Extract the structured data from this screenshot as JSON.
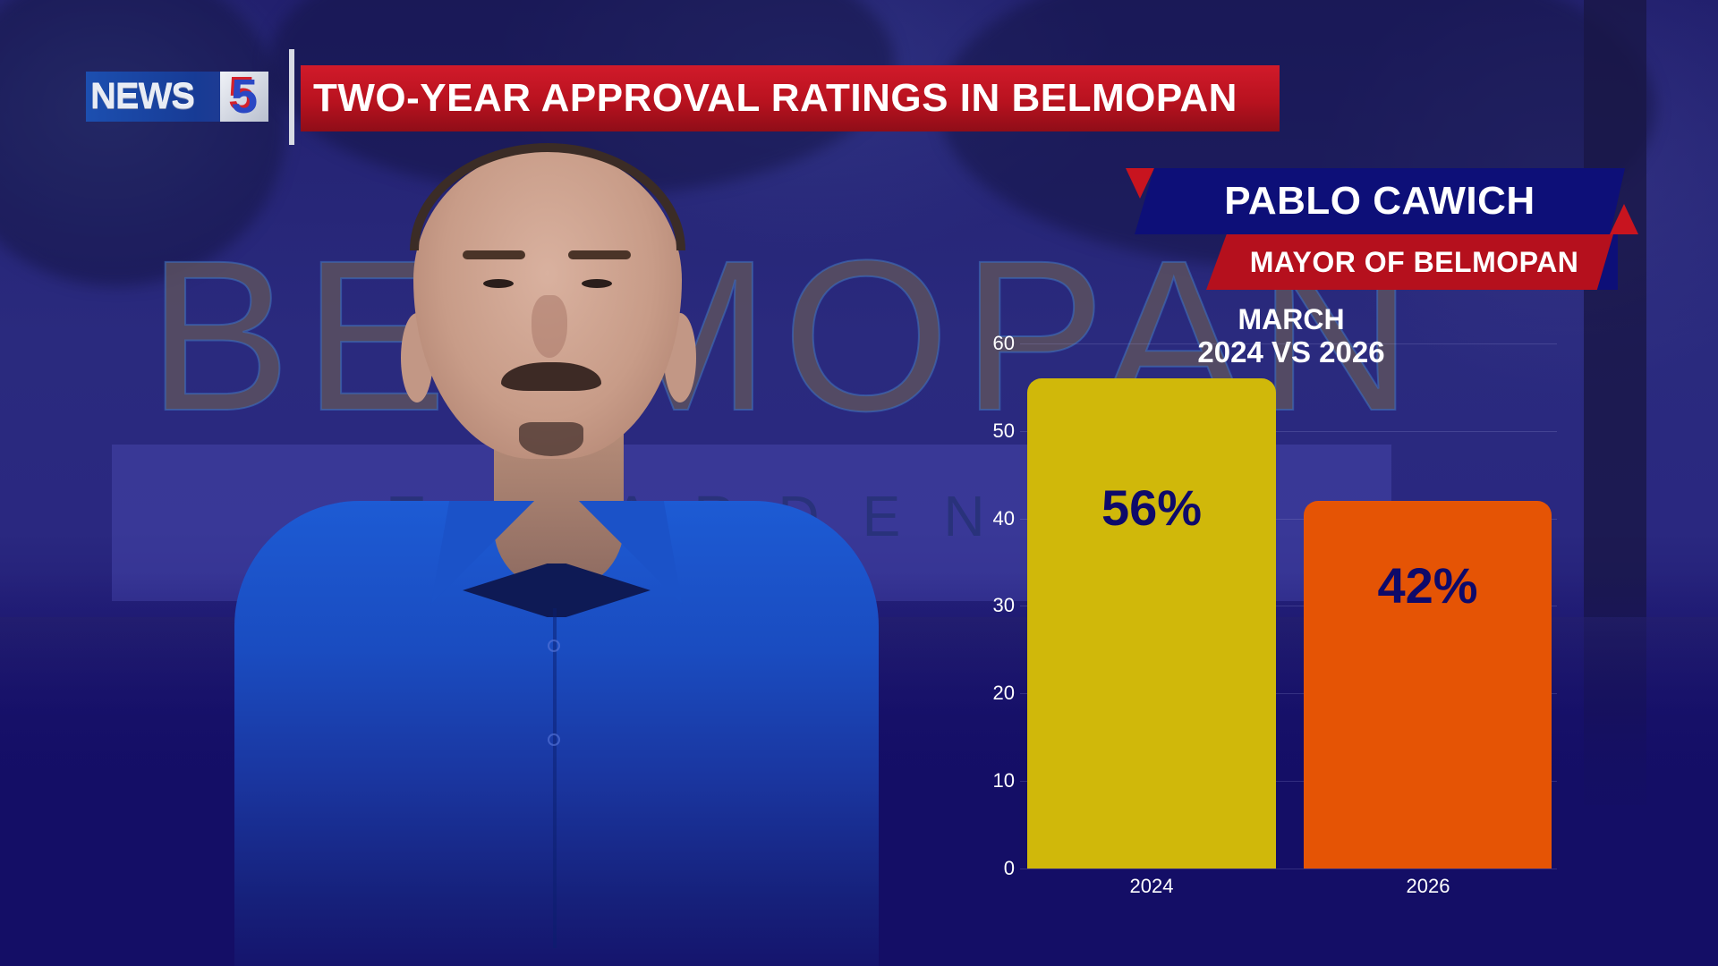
{
  "header": {
    "logo_text": "NEWS",
    "logo_number": "5",
    "title": "TWO-YEAR APPROVAL RATINGS IN BELMOPAN"
  },
  "subject": {
    "name": "PABLO CAWICH",
    "role": "MAYOR OF BELMOPAN"
  },
  "background": {
    "sign_text": "BELMOPAN",
    "sign_subtext": "T  GARDEN"
  },
  "colors": {
    "background_navy": "#140e66",
    "title_red": "#c8141f",
    "banner_blue": "#0d0f78",
    "bar_2024": "#d0b80a",
    "bar_2026": "#e55405",
    "label_navy": "#0e0a6a"
  },
  "chart_data": {
    "type": "bar",
    "title": "MARCH",
    "subtitle": "2024 VS 2026",
    "categories": [
      "2024",
      "2026"
    ],
    "values": [
      56,
      42
    ],
    "value_labels": [
      "56%",
      "42%"
    ],
    "colors": [
      "#d0b80a",
      "#e55405"
    ],
    "xlabel": "",
    "ylabel": "",
    "ylim": [
      0,
      60
    ],
    "yticks": [
      "0",
      "10",
      "20",
      "30",
      "40",
      "50",
      "60"
    ],
    "grid": true,
    "legend": false
  }
}
